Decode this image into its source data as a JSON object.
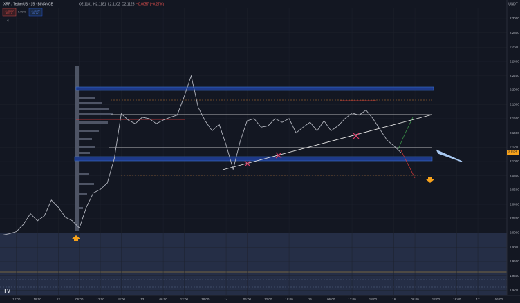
{
  "header": {
    "symbol": "XRP / TetherUS · 15 · BINANCE",
    "open": "O2.1181",
    "high": "H2.1181",
    "low": "L2.1102",
    "close": "C2.1125",
    "change": "−0.0057 (−0.27%)",
    "sell_price": "2.1125",
    "sell": "SELL",
    "spread": "0.0001",
    "buy_price": "2.1126",
    "buy": "BUY",
    "indicators": "4",
    "currency": "USDT",
    "last_price": "2.1125"
  },
  "chart_data": {
    "type": "line",
    "color": "#b2b5be",
    "x": [
      -4,
      -2,
      0,
      2,
      4,
      6,
      8,
      10,
      12,
      14,
      16,
      18,
      20,
      22,
      24,
      26,
      28,
      30,
      32,
      34,
      36,
      38,
      40,
      42,
      44,
      46,
      48,
      50,
      52,
      54,
      56,
      58,
      60,
      62,
      64,
      66,
      68,
      70,
      72,
      74,
      76,
      78,
      80,
      82,
      84,
      86,
      88,
      90,
      92,
      94,
      96,
      98,
      100,
      102,
      104,
      106,
      108,
      110
    ],
    "values": [
      1.997,
      1.999,
      2.002,
      2.012,
      2.027,
      2.017,
      2.024,
      2.046,
      2.036,
      2.022,
      2.017,
      2.007,
      2.036,
      2.056,
      2.061,
      2.07,
      2.104,
      2.167,
      2.158,
      2.153,
      2.162,
      2.16,
      2.153,
      2.158,
      2.162,
      2.165,
      2.191,
      2.22,
      2.176,
      2.157,
      2.143,
      2.152,
      2.123,
      2.089,
      2.128,
      2.157,
      2.16,
      2.148,
      2.15,
      2.16,
      2.155,
      2.16,
      2.14,
      2.148,
      2.155,
      2.143,
      2.157,
      2.143,
      2.15,
      2.16,
      2.168,
      2.165,
      2.172,
      2.16,
      2.145,
      2.13,
      2.122,
      2.1125
    ],
    "xlim": [
      -4.7,
      140.3
    ],
    "ylim": [
      1.9126,
      2.3145
    ],
    "xticks": [
      {
        "value": 0,
        "label": "12:00"
      },
      {
        "value": 6,
        "label": "18:00"
      },
      {
        "value": 12,
        "label": "12"
      },
      {
        "value": 18,
        "label": "06:00"
      },
      {
        "value": 24,
        "label": "12:00"
      },
      {
        "value": 30,
        "label": "18:00"
      },
      {
        "value": 36,
        "label": "13"
      },
      {
        "value": 42,
        "label": "06:00"
      },
      {
        "value": 48,
        "label": "12:00"
      },
      {
        "value": 54,
        "label": "18:00"
      },
      {
        "value": 60,
        "label": "14"
      },
      {
        "value": 66,
        "label": "06:00"
      },
      {
        "value": 72,
        "label": "12:00"
      },
      {
        "value": 78,
        "label": "18:00"
      },
      {
        "value": 84,
        "label": "15"
      },
      {
        "value": 90,
        "label": "06:00"
      },
      {
        "value": 96,
        "label": "12:00"
      },
      {
        "value": 102,
        "label": "18:00"
      },
      {
        "value": 108,
        "label": "16"
      },
      {
        "value": 114,
        "label": "06:00"
      },
      {
        "value": 120,
        "label": "12:00"
      },
      {
        "value": 126,
        "label": "18:00"
      },
      {
        "value": 132,
        "label": "17"
      },
      {
        "value": 138,
        "label": "06:00"
      }
    ],
    "yticks": [
      {
        "value": 1.92,
        "label": "1.9200"
      },
      {
        "value": 1.94,
        "label": "1.9400"
      },
      {
        "value": 1.96,
        "label": "1.9600"
      },
      {
        "value": 1.98,
        "label": "1.9800"
      },
      {
        "value": 2.0,
        "label": "2.0000"
      },
      {
        "value": 2.02,
        "label": "2.0200"
      },
      {
        "value": 2.04,
        "label": "2.0400"
      },
      {
        "value": 2.06,
        "label": "2.0600"
      },
      {
        "value": 2.08,
        "label": "2.0800"
      },
      {
        "value": 2.1,
        "label": "2.1000"
      },
      {
        "value": 2.12,
        "label": "2.1200"
      },
      {
        "value": 2.14,
        "label": "2.1400"
      },
      {
        "value": 2.16,
        "label": "2.1600"
      },
      {
        "value": 2.18,
        "label": "2.1800"
      },
      {
        "value": 2.2,
        "label": "2.2000"
      },
      {
        "value": 2.22,
        "label": "2.2200"
      },
      {
        "value": 2.24,
        "label": "2.2400"
      },
      {
        "value": 2.26,
        "label": "2.2600"
      },
      {
        "value": 2.28,
        "label": "2.2800"
      },
      {
        "value": 2.3,
        "label": "2.3000"
      }
    ],
    "grid": true
  }
}
